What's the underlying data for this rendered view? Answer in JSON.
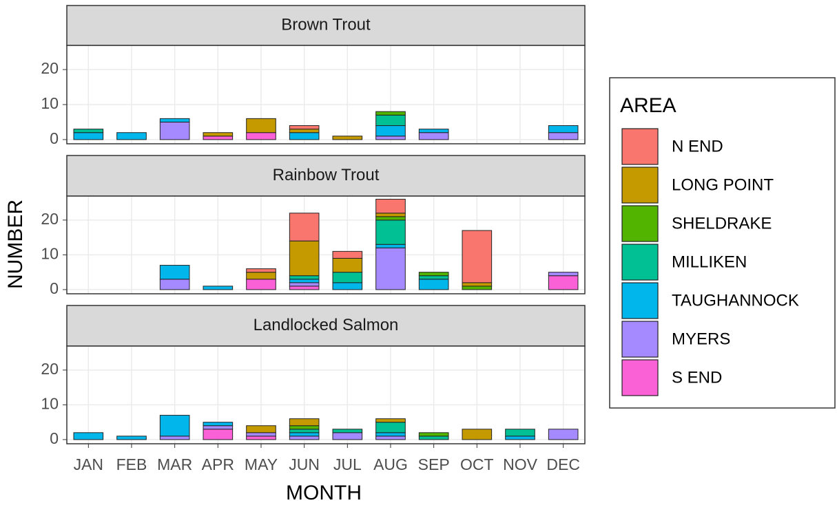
{
  "chart_data": [
    {
      "type": "bar",
      "stacked": true,
      "title": "Brown Trout",
      "categories": [
        "JAN",
        "FEB",
        "MAR",
        "APR",
        "MAY",
        "JUN",
        "JUL",
        "AUG",
        "SEP",
        "OCT",
        "NOV",
        "DEC"
      ],
      "ylim": [
        -1.2,
        26.9
      ],
      "yticks": [
        0,
        10,
        20
      ],
      "grid": true,
      "series": [
        {
          "name": "N END",
          "color": "#F8766D",
          "values": [
            0,
            0,
            0,
            0,
            0,
            1,
            0,
            0,
            0,
            0,
            0,
            0
          ]
        },
        {
          "name": "LONG POINT",
          "color": "#C49A00",
          "values": [
            0,
            0,
            0,
            1,
            4,
            1,
            1,
            0,
            0,
            0,
            0,
            0
          ]
        },
        {
          "name": "SHELDRAKE",
          "color": "#53B400",
          "values": [
            0,
            0,
            0,
            0,
            0,
            0,
            0,
            1,
            0,
            0,
            0,
            0
          ]
        },
        {
          "name": "MILLIKEN",
          "color": "#00C094",
          "values": [
            1,
            0,
            0,
            0,
            0,
            0,
            0,
            3,
            0,
            0,
            0,
            0
          ]
        },
        {
          "name": "TAUGHANNOCK",
          "color": "#00B6EB",
          "values": [
            2,
            2,
            1,
            0,
            0,
            2,
            0,
            3,
            1,
            0,
            0,
            2
          ]
        },
        {
          "name": "MYERS",
          "color": "#A58AFF",
          "values": [
            0,
            0,
            5,
            0,
            0,
            0,
            0,
            1,
            2,
            0,
            0,
            2
          ]
        },
        {
          "name": "S END",
          "color": "#FB61D7",
          "values": [
            0,
            0,
            0,
            1,
            2,
            0,
            0,
            0,
            0,
            0,
            0,
            0
          ]
        }
      ]
    },
    {
      "type": "bar",
      "stacked": true,
      "title": "Rainbow Trout",
      "categories": [
        "JAN",
        "FEB",
        "MAR",
        "APR",
        "MAY",
        "JUN",
        "JUL",
        "AUG",
        "SEP",
        "OCT",
        "NOV",
        "DEC"
      ],
      "ylim": [
        -1.2,
        26.9
      ],
      "yticks": [
        0,
        10,
        20
      ],
      "grid": true,
      "series": [
        {
          "name": "N END",
          "color": "#F8766D",
          "values": [
            0,
            0,
            0,
            0,
            1,
            8,
            2,
            4,
            0,
            15,
            0,
            0
          ]
        },
        {
          "name": "LONG POINT",
          "color": "#C49A00",
          "values": [
            0,
            0,
            0,
            0,
            2,
            10,
            4,
            1,
            0,
            1,
            0,
            0
          ]
        },
        {
          "name": "SHELDRAKE",
          "color": "#53B400",
          "values": [
            0,
            0,
            0,
            0,
            0,
            0,
            0,
            1,
            1,
            1,
            0,
            0
          ]
        },
        {
          "name": "MILLIKEN",
          "color": "#00C094",
          "values": [
            0,
            0,
            0,
            0,
            0,
            1,
            3,
            7,
            1,
            0,
            0,
            0
          ]
        },
        {
          "name": "TAUGHANNOCK",
          "color": "#00B6EB",
          "values": [
            0,
            0,
            4,
            1,
            0,
            1,
            2,
            1,
            3,
            0,
            0,
            0
          ]
        },
        {
          "name": "MYERS",
          "color": "#A58AFF",
          "values": [
            0,
            0,
            3,
            0,
            0,
            1,
            0,
            12,
            0,
            0,
            0,
            1
          ]
        },
        {
          "name": "S END",
          "color": "#FB61D7",
          "values": [
            0,
            0,
            0,
            0,
            3,
            1,
            0,
            0,
            0,
            0,
            0,
            4
          ]
        }
      ]
    },
    {
      "type": "bar",
      "stacked": true,
      "title": "Landlocked Salmon",
      "categories": [
        "JAN",
        "FEB",
        "MAR",
        "APR",
        "MAY",
        "JUN",
        "JUL",
        "AUG",
        "SEP",
        "OCT",
        "NOV",
        "DEC"
      ],
      "ylim": [
        -1.2,
        26.9
      ],
      "yticks": [
        0,
        10,
        20
      ],
      "grid": true,
      "x_label": "MONTH",
      "y_label": "NUMBER",
      "legend_title": "AREA",
      "legend": "right",
      "series": [
        {
          "name": "N END",
          "color": "#F8766D",
          "values": [
            0,
            0,
            0,
            0,
            0,
            0,
            0,
            0,
            0,
            0,
            0,
            0
          ]
        },
        {
          "name": "LONG POINT",
          "color": "#C49A00",
          "values": [
            0,
            0,
            0,
            0,
            2,
            2,
            0,
            1,
            0,
            3,
            0,
            0
          ]
        },
        {
          "name": "SHELDRAKE",
          "color": "#53B400",
          "values": [
            0,
            0,
            0,
            0,
            0,
            1,
            0,
            0,
            1,
            0,
            0,
            0
          ]
        },
        {
          "name": "MILLIKEN",
          "color": "#00C094",
          "values": [
            0,
            0,
            0,
            0,
            0,
            1,
            1,
            3,
            1,
            0,
            2,
            0
          ]
        },
        {
          "name": "TAUGHANNOCK",
          "color": "#00B6EB",
          "values": [
            2,
            1,
            6,
            1,
            0,
            1,
            0,
            1,
            0,
            0,
            1,
            0
          ]
        },
        {
          "name": "MYERS",
          "color": "#A58AFF",
          "values": [
            0,
            0,
            1,
            1,
            1,
            1,
            2,
            1,
            0,
            0,
            0,
            3
          ]
        },
        {
          "name": "S END",
          "color": "#FB61D7",
          "values": [
            0,
            0,
            0,
            3,
            1,
            0,
            0,
            0,
            0,
            0,
            0,
            0
          ]
        }
      ]
    }
  ]
}
